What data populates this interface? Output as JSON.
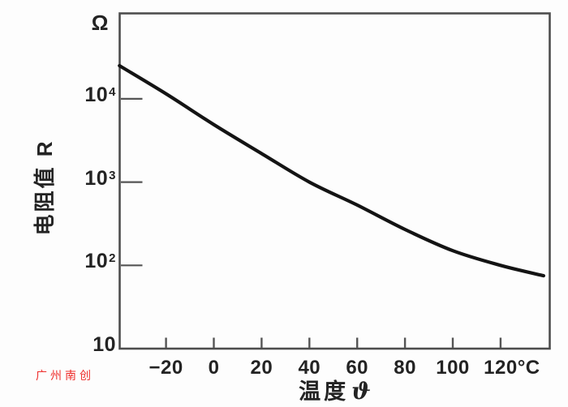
{
  "watermark": {
    "text": "广州南创",
    "color": "#ee2e2c"
  },
  "chart_data": {
    "type": "line",
    "title": "",
    "xlabel": "温度 ϑ",
    "xlabel_text": "温度",
    "xlabel_symbol": "ϑ",
    "ylabel": "电阻值 R",
    "y_unit": "Ω",
    "x_unit": "°C",
    "y_scale": "log10",
    "x_range": [
      -40,
      140
    ],
    "y_range": [
      10,
      100000
    ],
    "grid": false,
    "legend": false,
    "x_ticks": [
      {
        "label": "−20",
        "t": -20
      },
      {
        "label": "0",
        "t": 0
      },
      {
        "label": "20",
        "t": 20
      },
      {
        "label": "40",
        "t": 40
      },
      {
        "label": "60",
        "t": 60
      },
      {
        "label": "80",
        "t": 80
      },
      {
        "label": "100",
        "t": 100
      },
      {
        "label": "120°C",
        "t": 120
      }
    ],
    "y_ticks": [
      {
        "base": "10",
        "exp": "4",
        "r": 10000
      },
      {
        "base": "10",
        "exp": "3",
        "r": 1000
      },
      {
        "base": "10",
        "exp": "2",
        "r": 100
      },
      {
        "base": "10",
        "exp": "",
        "r": 10
      }
    ],
    "series": [
      {
        "points": [
          {
            "t": -39.5,
            "r": 25000
          },
          {
            "t": -20,
            "r": 11500
          },
          {
            "t": 0,
            "r": 4900
          },
          {
            "t": 20,
            "r": 2200
          },
          {
            "t": 40,
            "r": 1000
          },
          {
            "t": 60,
            "r": 530
          },
          {
            "t": 80,
            "r": 270
          },
          {
            "t": 100,
            "r": 150
          },
          {
            "t": 120,
            "r": 100
          },
          {
            "t": 138,
            "r": 75
          }
        ]
      }
    ],
    "curve_color": "#141414",
    "axis_color": "#4d4d4d",
    "tick_color": "#555555",
    "text_color": "#232323"
  }
}
